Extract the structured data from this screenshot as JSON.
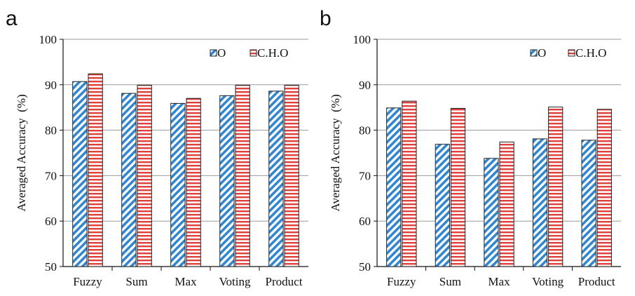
{
  "chart_data": [
    {
      "panel_label": "a",
      "type": "bar",
      "categories": [
        "Fuzzy",
        "Sum",
        "Max",
        "Voting",
        "Product"
      ],
      "series": [
        {
          "name": "O",
          "values": [
            90.7,
            88.1,
            85.9,
            87.6,
            88.6
          ],
          "color": "#2e86d6",
          "pattern": "diagonal-stripes"
        },
        {
          "name": "C.H.O",
          "values": [
            92.4,
            89.9,
            87.0,
            89.9,
            89.9
          ],
          "color": "#e0403c",
          "pattern": "horizontal-stripes"
        }
      ],
      "ylabel": "Averaged Accuracy  (%)",
      "xlabel": "",
      "ylim": [
        50,
        100
      ],
      "yticks": [
        50,
        60,
        70,
        80,
        90,
        100
      ],
      "grid": true,
      "legend": "top-right"
    },
    {
      "panel_label": "b",
      "type": "bar",
      "categories": [
        "Fuzzy",
        "Sum",
        "Max",
        "Voting",
        "Product"
      ],
      "series": [
        {
          "name": "O",
          "values": [
            84.9,
            76.9,
            73.8,
            78.1,
            77.8
          ],
          "color": "#2e86d6",
          "pattern": "diagonal-stripes"
        },
        {
          "name": "C.H.O",
          "values": [
            86.4,
            84.8,
            77.4,
            85.1,
            84.6
          ],
          "color": "#e0403c",
          "pattern": "horizontal-stripes"
        }
      ],
      "ylabel": "Averaged Accuracy  (%)",
      "xlabel": "",
      "ylim": [
        50,
        100
      ],
      "yticks": [
        50,
        60,
        70,
        80,
        90,
        100
      ],
      "grid": true,
      "legend": "top-right"
    }
  ]
}
